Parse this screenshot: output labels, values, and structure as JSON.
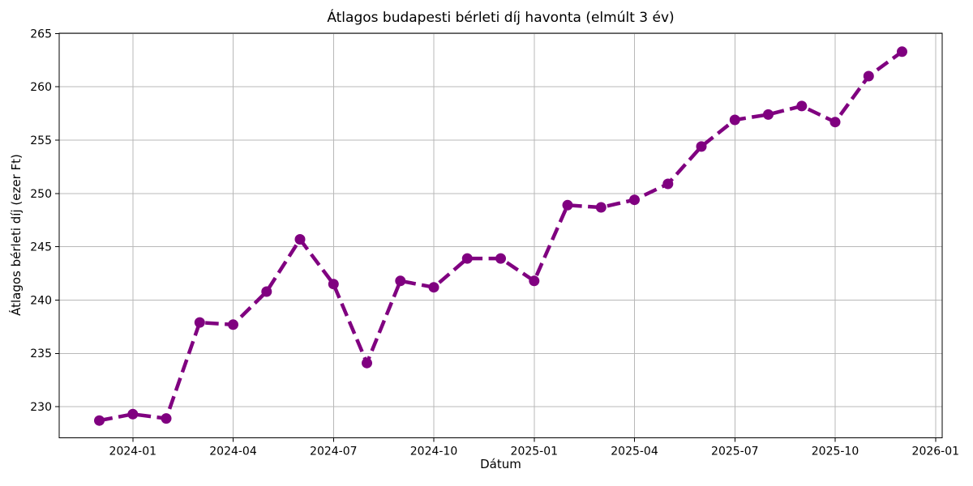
{
  "chart_data": {
    "type": "line",
    "title": "Átlagos budapesti bérleti díj havonta (elmúlt 3 év)",
    "xlabel": "Dátum",
    "ylabel": "Átlagos bérleti díj (ezer Ft)",
    "x": [
      "2023-12",
      "2024-01",
      "2024-02",
      "2024-03",
      "2024-04",
      "2024-05",
      "2024-06",
      "2024-07",
      "2024-08",
      "2024-09",
      "2024-10",
      "2024-11",
      "2024-12",
      "2025-01",
      "2025-02",
      "2025-03",
      "2025-04",
      "2025-05",
      "2025-06",
      "2025-07",
      "2025-08",
      "2025-09",
      "2025-10",
      "2025-11",
      "2025-12"
    ],
    "values": [
      228.7,
      229.3,
      228.9,
      237.9,
      237.7,
      240.8,
      245.7,
      241.5,
      234.1,
      241.8,
      241.2,
      243.9,
      243.9,
      241.8,
      248.9,
      248.7,
      249.4,
      250.9,
      254.4,
      256.9,
      257.4,
      258.2,
      256.7,
      261.0,
      263.3
    ],
    "xticks": [
      "2024-01",
      "2024-04",
      "2024-07",
      "2024-10",
      "2025-01",
      "2025-04",
      "2025-07",
      "2025-10",
      "2026-01"
    ],
    "yticks": [
      230,
      235,
      240,
      245,
      250,
      255,
      260,
      265
    ],
    "ylim": [
      227.1,
      265.03
    ],
    "xlim_months": [
      -1.2,
      25.2
    ],
    "grid": true,
    "legend": false,
    "line_style": "dashed",
    "marker": "circle",
    "line_color": "#800080",
    "grid_color": "#b8b8b8",
    "axis_color": "#000000",
    "tick_label_color": "#000000",
    "background_color": "#ffffff"
  }
}
